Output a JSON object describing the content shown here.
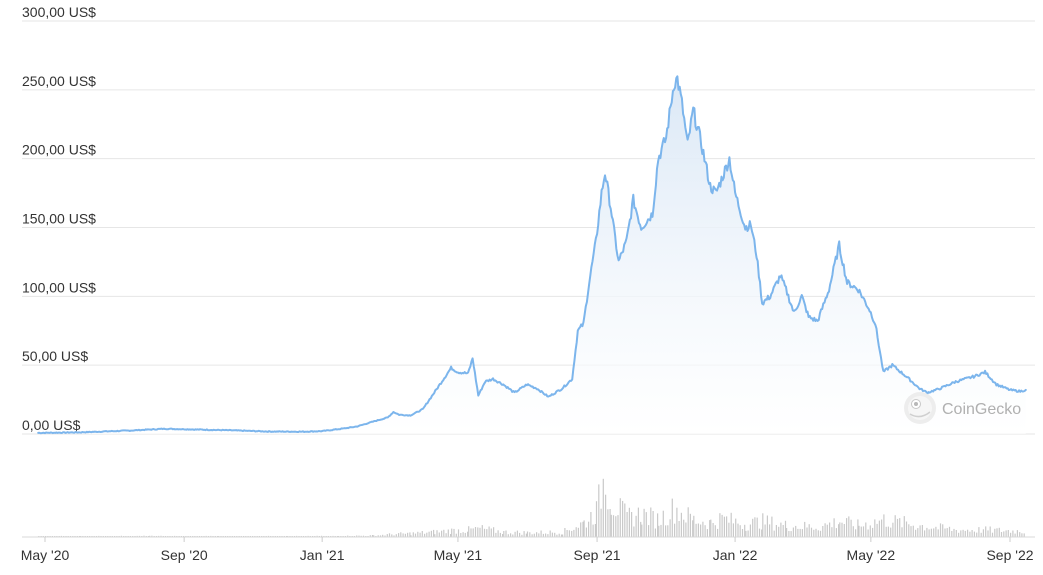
{
  "chart_data": {
    "type": "area",
    "title": "",
    "xlabel": "",
    "ylabel": "",
    "ylim": [
      0,
      300
    ],
    "y_ticks": [
      "300,00 US$",
      "250,00 US$",
      "200,00 US$",
      "150,00 US$",
      "100,00 US$",
      "50,00 US$",
      "0,00 US$"
    ],
    "y_tick_values": [
      300,
      250,
      200,
      150,
      100,
      50,
      0
    ],
    "x_ticks": [
      "May '20",
      "Sep '20",
      "Jan '21",
      "May '21",
      "Sep '21",
      "Jan '22",
      "May '22",
      "Sep '22"
    ],
    "x_tick_dates": [
      "2020-05-01",
      "2020-09-01",
      "2021-01-01",
      "2021-05-01",
      "2021-09-01",
      "2022-01-01",
      "2022-05-01",
      "2022-09-01"
    ],
    "grid": true,
    "series": [
      {
        "name": "",
        "color": "#7cb5ec",
        "points": [
          [
            "2020-04-25",
            0.8
          ],
          [
            "2020-06-01",
            1.2
          ],
          [
            "2020-07-15",
            2.5
          ],
          [
            "2020-08-15",
            3.8
          ],
          [
            "2020-09-15",
            3.2
          ],
          [
            "2020-10-15",
            2.6
          ],
          [
            "2020-11-15",
            1.8
          ],
          [
            "2020-12-15",
            1.7
          ],
          [
            "2021-01-01",
            2.1
          ],
          [
            "2021-01-20",
            4.0
          ],
          [
            "2021-02-01",
            5.5
          ],
          [
            "2021-02-15",
            9.0
          ],
          [
            "2021-02-28",
            12.0
          ],
          [
            "2021-03-05",
            16.0
          ],
          [
            "2021-03-10",
            14.0
          ],
          [
            "2021-03-20",
            13.5
          ],
          [
            "2021-03-31",
            18.0
          ],
          [
            "2021-04-10",
            30.0
          ],
          [
            "2021-04-20",
            42.0
          ],
          [
            "2021-04-25",
            48.0
          ],
          [
            "2021-05-01",
            45.0
          ],
          [
            "2021-05-10",
            44.0
          ],
          [
            "2021-05-14",
            55.0
          ],
          [
            "2021-05-19",
            28.0
          ],
          [
            "2021-05-25",
            38.0
          ],
          [
            "2021-06-01",
            40.0
          ],
          [
            "2021-06-10",
            36.0
          ],
          [
            "2021-06-20",
            30.0
          ],
          [
            "2021-07-01",
            36.0
          ],
          [
            "2021-07-10",
            33.0
          ],
          [
            "2021-07-20",
            27.0
          ],
          [
            "2021-08-01",
            33.0
          ],
          [
            "2021-08-10",
            40.0
          ],
          [
            "2021-08-15",
            75.0
          ],
          [
            "2021-08-20",
            80.0
          ],
          [
            "2021-08-25",
            110.0
          ],
          [
            "2021-08-31",
            140.0
          ],
          [
            "2021-09-05",
            175.0
          ],
          [
            "2021-09-08",
            190.0
          ],
          [
            "2021-09-13",
            165.0
          ],
          [
            "2021-09-20",
            125.0
          ],
          [
            "2021-09-27",
            140.0
          ],
          [
            "2021-10-03",
            170.0
          ],
          [
            "2021-10-10",
            150.0
          ],
          [
            "2021-10-20",
            160.0
          ],
          [
            "2021-10-25",
            200.0
          ],
          [
            "2021-11-01",
            215.0
          ],
          [
            "2021-11-04",
            232.0
          ],
          [
            "2021-11-08",
            255.0
          ],
          [
            "2021-11-11",
            258.0
          ],
          [
            "2021-11-15",
            240.0
          ],
          [
            "2021-11-20",
            210.0
          ],
          [
            "2021-11-25",
            235.0
          ],
          [
            "2021-12-01",
            215.0
          ],
          [
            "2021-12-05",
            200.0
          ],
          [
            "2021-12-10",
            180.0
          ],
          [
            "2021-12-15",
            175.0
          ],
          [
            "2021-12-20",
            185.0
          ],
          [
            "2021-12-27",
            200.0
          ],
          [
            "2022-01-01",
            175.0
          ],
          [
            "2022-01-10",
            150.0
          ],
          [
            "2022-01-15",
            152.0
          ],
          [
            "2022-01-20",
            130.0
          ],
          [
            "2022-01-25",
            95.0
          ],
          [
            "2022-02-01",
            100.0
          ],
          [
            "2022-02-10",
            115.0
          ],
          [
            "2022-02-15",
            105.0
          ],
          [
            "2022-02-22",
            88.0
          ],
          [
            "2022-03-01",
            100.0
          ],
          [
            "2022-03-07",
            85.0
          ],
          [
            "2022-03-15",
            82.0
          ],
          [
            "2022-03-25",
            105.0
          ],
          [
            "2022-04-01",
            130.0
          ],
          [
            "2022-04-03",
            137.0
          ],
          [
            "2022-04-10",
            110.0
          ],
          [
            "2022-04-20",
            105.0
          ],
          [
            "2022-04-30",
            90.0
          ],
          [
            "2022-05-05",
            80.0
          ],
          [
            "2022-05-10",
            55.0
          ],
          [
            "2022-05-12",
            45.0
          ],
          [
            "2022-05-20",
            50.0
          ],
          [
            "2022-06-01",
            42.0
          ],
          [
            "2022-06-13",
            33.0
          ],
          [
            "2022-06-20",
            30.0
          ],
          [
            "2022-07-01",
            33.0
          ],
          [
            "2022-07-15",
            38.0
          ],
          [
            "2022-08-01",
            42.0
          ],
          [
            "2022-08-10",
            45.0
          ],
          [
            "2022-08-20",
            36.0
          ],
          [
            "2022-09-01",
            32.0
          ],
          [
            "2022-09-10",
            31.0
          ],
          [
            "2022-09-15",
            32.0
          ]
        ]
      }
    ],
    "volume_series": {
      "name": "",
      "color": "#c9c9c9",
      "points": [
        [
          "2020-04-25",
          0.5
        ],
        [
          "2020-06-01",
          0.5
        ],
        [
          "2020-08-01",
          0.6
        ],
        [
          "2020-10-01",
          0.5
        ],
        [
          "2020-12-01",
          0.5
        ],
        [
          "2021-01-15",
          0.6
        ],
        [
          "2021-02-15",
          1.0
        ],
        [
          "2021-03-05",
          2.0
        ],
        [
          "2021-03-20",
          2.5
        ],
        [
          "2021-04-10",
          3.5
        ],
        [
          "2021-04-25",
          4.5
        ],
        [
          "2021-05-10",
          5.0
        ],
        [
          "2021-05-20",
          6.0
        ],
        [
          "2021-06-10",
          3.5
        ],
        [
          "2021-07-01",
          3.0
        ],
        [
          "2021-08-01",
          3.5
        ],
        [
          "2021-08-20",
          10.0
        ],
        [
          "2021-08-31",
          18.0
        ],
        [
          "2021-09-08",
          45.0
        ],
        [
          "2021-09-13",
          25.0
        ],
        [
          "2021-09-27",
          14.0
        ],
        [
          "2021-10-10",
          16.0
        ],
        [
          "2021-10-25",
          12.0
        ],
        [
          "2021-11-08",
          20.0
        ],
        [
          "2021-11-25",
          12.0
        ],
        [
          "2021-12-10",
          10.0
        ],
        [
          "2021-12-20",
          13.0
        ],
        [
          "2022-01-10",
          9.0
        ],
        [
          "2022-01-25",
          11.0
        ],
        [
          "2022-02-15",
          8.0
        ],
        [
          "2022-03-15",
          7.0
        ],
        [
          "2022-04-03",
          11.0
        ],
        [
          "2022-04-20",
          8.0
        ],
        [
          "2022-05-12",
          12.0
        ],
        [
          "2022-06-13",
          8.0
        ],
        [
          "2022-07-15",
          5.0
        ],
        [
          "2022-08-10",
          5.0
        ],
        [
          "2022-09-15",
          4.0
        ]
      ]
    }
  },
  "watermark": {
    "text": "CoinGecko",
    "icon": "gecko-logo-icon"
  },
  "colors": {
    "line": "#7cb5ec",
    "fill_top": "#dbe8f6",
    "fill_bottom": "#ffffff",
    "volume": "#c9c9c9",
    "grid": "#e6e6e6",
    "axis_text": "#333333"
  }
}
